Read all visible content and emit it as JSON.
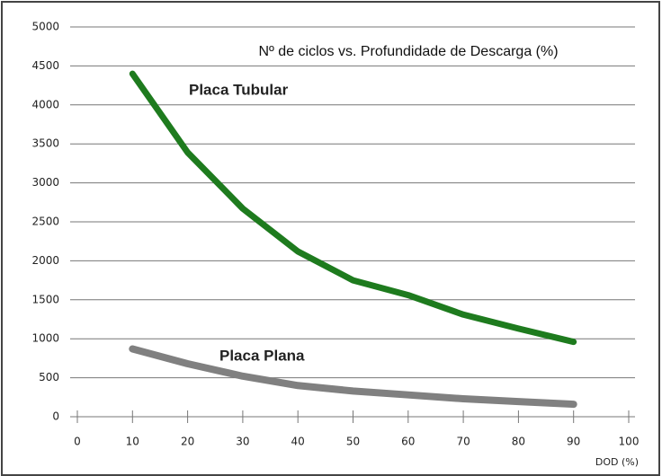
{
  "chart_data": {
    "type": "line",
    "title": "Nº de ciclos vs. Profundidade de Descarga (%)",
    "x_label": "DOD (%)",
    "x": [
      10,
      20,
      30,
      40,
      50,
      60,
      70,
      80,
      90
    ],
    "series": [
      {
        "name": "Placa Tubular",
        "color": "#1e7b1e",
        "values": [
          4400,
          3390,
          2670,
          2120,
          1750,
          1560,
          1310,
          1130,
          960
        ]
      },
      {
        "name": "Placa Plana",
        "color": "#808080",
        "values": [
          870,
          680,
          520,
          400,
          330,
          280,
          230,
          195,
          160
        ]
      }
    ],
    "xlim": [
      0,
      100
    ],
    "xticks": [
      0,
      10,
      20,
      30,
      40,
      50,
      60,
      70,
      80,
      90,
      100
    ],
    "ylim": [
      0,
      5000
    ],
    "yticks": [
      0,
      500,
      1000,
      1500,
      2000,
      2500,
      3000,
      3500,
      4000,
      4500,
      5000
    ],
    "grid": true
  }
}
